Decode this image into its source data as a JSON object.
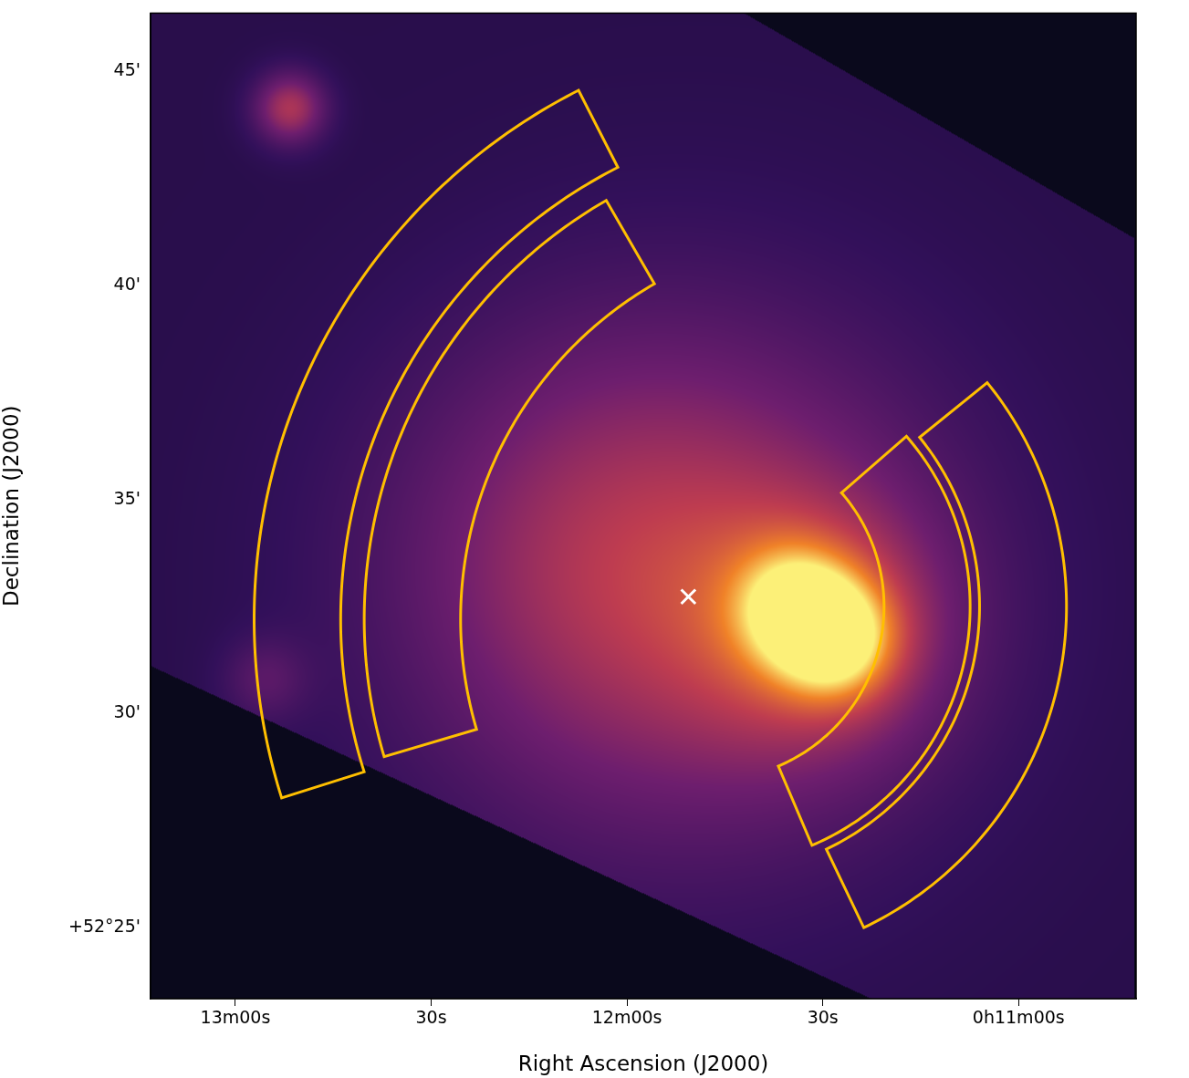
{
  "chart_data": {
    "type": "image",
    "x_label": "Right Ascension (J2000)",
    "y_label": "Declination (J2000)",
    "xlim": [
      793,
      642
    ],
    "ylim": [
      23.34,
      46.36
    ],
    "xticks": [
      {
        "value": 780,
        "label": "13m00s"
      },
      {
        "value": 750,
        "label": "30s"
      },
      {
        "value": 720,
        "label": "12m00s"
      },
      {
        "value": 690,
        "label": "30s"
      },
      {
        "value": 660,
        "label": "0h11m00s"
      }
    ],
    "yticks": [
      {
        "value": 25,
        "label": "+52°25'"
      },
      {
        "value": 30,
        "label": "30'"
      },
      {
        "value": 35,
        "label": "35'"
      },
      {
        "value": 40,
        "label": "40'"
      },
      {
        "value": 45,
        "label": "45'"
      }
    ],
    "grid": false,
    "coverage": [
      [
        792.9,
        46.36
      ],
      [
        702.0,
        46.36
      ],
      [
        642.4,
        41.12
      ],
      [
        642.4,
        23.34
      ],
      [
        682.5,
        23.34
      ],
      [
        792.9,
        31.11
      ]
    ],
    "emission": [
      {
        "x": 688.1,
        "y": 31.75,
        "sigma": 0.9,
        "amplitude": 0.55
      },
      {
        "x": 694.3,
        "y": 32.5,
        "sigma": 0.9,
        "amplitude": 0.45
      },
      {
        "x": 690.5,
        "y": 32.0,
        "sigma": 2.0,
        "amplitude": 0.3
      },
      {
        "x": 710.3,
        "y": 33.0,
        "sigma": 4.5,
        "amplitude": 0.35
      },
      {
        "x": 725.6,
        "y": 33.9,
        "sigma": 3.5,
        "amplitude": 0.12
      },
      {
        "x": 771.7,
        "y": 44.15,
        "sigma": 0.6,
        "amplitude": 0.4
      },
      {
        "x": 775.6,
        "y": 30.8,
        "sigma": 0.7,
        "amplitude": 0.15
      }
    ],
    "regions": [
      {
        "center": [
          686.1,
          32.2
        ],
        "r_inner": 11.85,
        "r_outer": 13.87,
        "pa_start": 27,
        "pa_end": 107.5,
        "color": "#ffbf00"
      },
      {
        "center": [
          686.1,
          32.2
        ],
        "r_inner": 9.05,
        "r_outer": 11.3,
        "pa_start": 30,
        "pa_end": 106.5,
        "color": "#ffbf00"
      },
      {
        "center": [
          707.2,
          32.5
        ],
        "r_inner": 6.28,
        "r_outer": 8.31,
        "pa_start": 205.5,
        "pa_end": 309,
        "color": "#ffbf00"
      },
      {
        "center": [
          707.2,
          32.5
        ],
        "r_inner": 4.05,
        "r_outer": 6.06,
        "pa_start": 203,
        "pa_end": 311,
        "color": "#ffbf00"
      }
    ],
    "series": [
      {
        "type": "scatter",
        "marker": "x",
        "color": "#ffffff",
        "values": [
          {
            "x": 710.6,
            "y": 32.73
          }
        ]
      }
    ]
  }
}
